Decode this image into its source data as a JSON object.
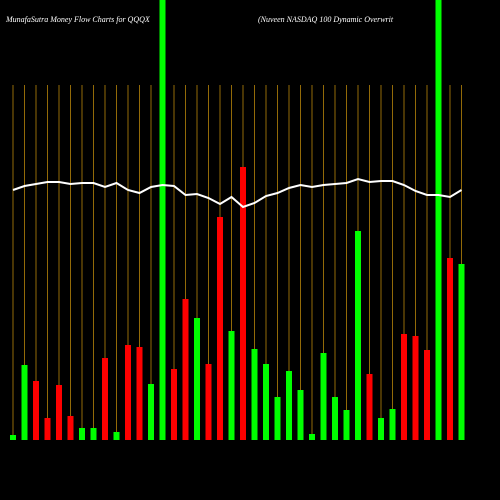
{
  "chart_data": {
    "type": "bar",
    "title": "MunafaSutra  Money Flow  Charts for QQQX",
    "subtitle": "(Nuveen  NASDAQ 100  Dynamic Overwrit",
    "ylim": [
      0,
      440
    ],
    "values": [
      5,
      75,
      59,
      22,
      55,
      24,
      12,
      12,
      82,
      8,
      95,
      93,
      56,
      440,
      71,
      141,
      122,
      76,
      223,
      109,
      273,
      91,
      76,
      43,
      69,
      50,
      6,
      87,
      43,
      30,
      209,
      66,
      22,
      31,
      106,
      104,
      90,
      440,
      182,
      176
    ],
    "colors": [
      "#00ff00",
      "#00ff00",
      "#ff0000",
      "#ff0000",
      "#ff0000",
      "#ff0000",
      "#00ff00",
      "#00ff00",
      "#ff0000",
      "#00ff00",
      "#ff0000",
      "#ff0000",
      "#00ff00",
      "#00ff00",
      "#ff0000",
      "#ff0000",
      "#00ff00",
      "#ff0000",
      "#ff0000",
      "#00ff00",
      "#ff0000",
      "#00ff00",
      "#00ff00",
      "#00ff00",
      "#00ff00",
      "#00ff00",
      "#00ff00",
      "#00ff00",
      "#00ff00",
      "#00ff00",
      "#00ff00",
      "#ff0000",
      "#00ff00",
      "#00ff00",
      "#ff0000",
      "#ff0000",
      "#ff0000",
      "#00ff00",
      "#ff0000",
      "#00ff00"
    ],
    "line": {
      "color": "#ffffff",
      "values": [
        250,
        254,
        256,
        258,
        258,
        256,
        257,
        257,
        253,
        257,
        250,
        247,
        253,
        255,
        254,
        245,
        246,
        242,
        236,
        243,
        233,
        237,
        244,
        247,
        252,
        255,
        253,
        255,
        256,
        257,
        261,
        258,
        259,
        259,
        255,
        249,
        245,
        245,
        243,
        250
      ]
    }
  }
}
